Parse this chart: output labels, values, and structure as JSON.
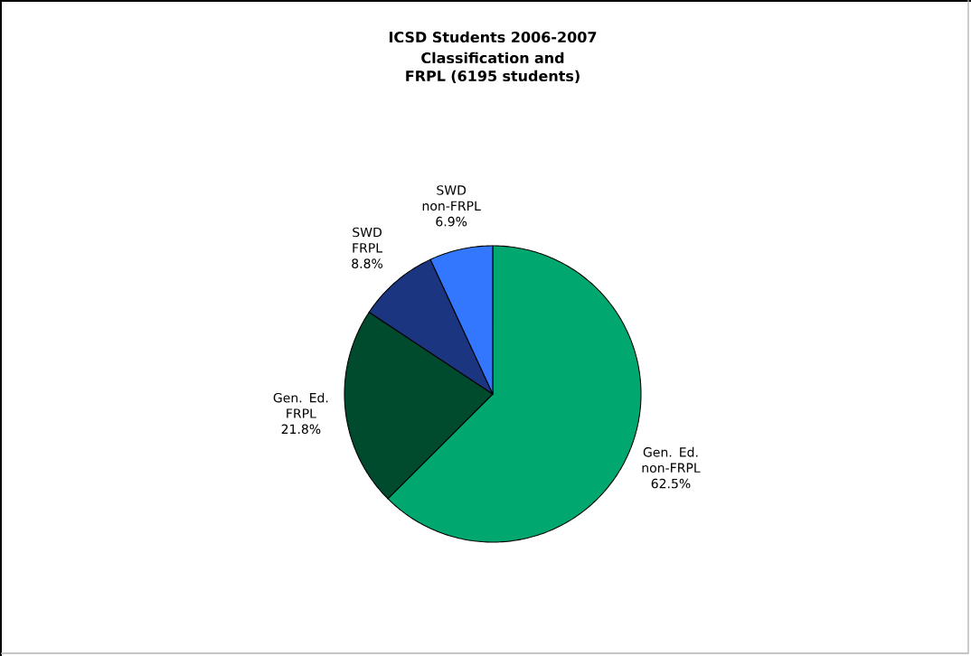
{
  "chart_data": {
    "type": "pie",
    "title": "ICSD Students 2006-2007",
    "subtitle": "Classification and FRPL (6195 students)",
    "categories": [
      "Gen. Ed. non-FRPL",
      "Gen. Ed. FRPL",
      "SWD FRPL",
      "SWD non-FRPL"
    ],
    "values": [
      62.5,
      21.8,
      8.8,
      6.9
    ],
    "value_labels": [
      "62.5%",
      "21.8%",
      "8.8%",
      "6.9%"
    ],
    "colors": [
      "#00a870",
      "#004a2e",
      "#1b3580",
      "#3377ff"
    ]
  }
}
